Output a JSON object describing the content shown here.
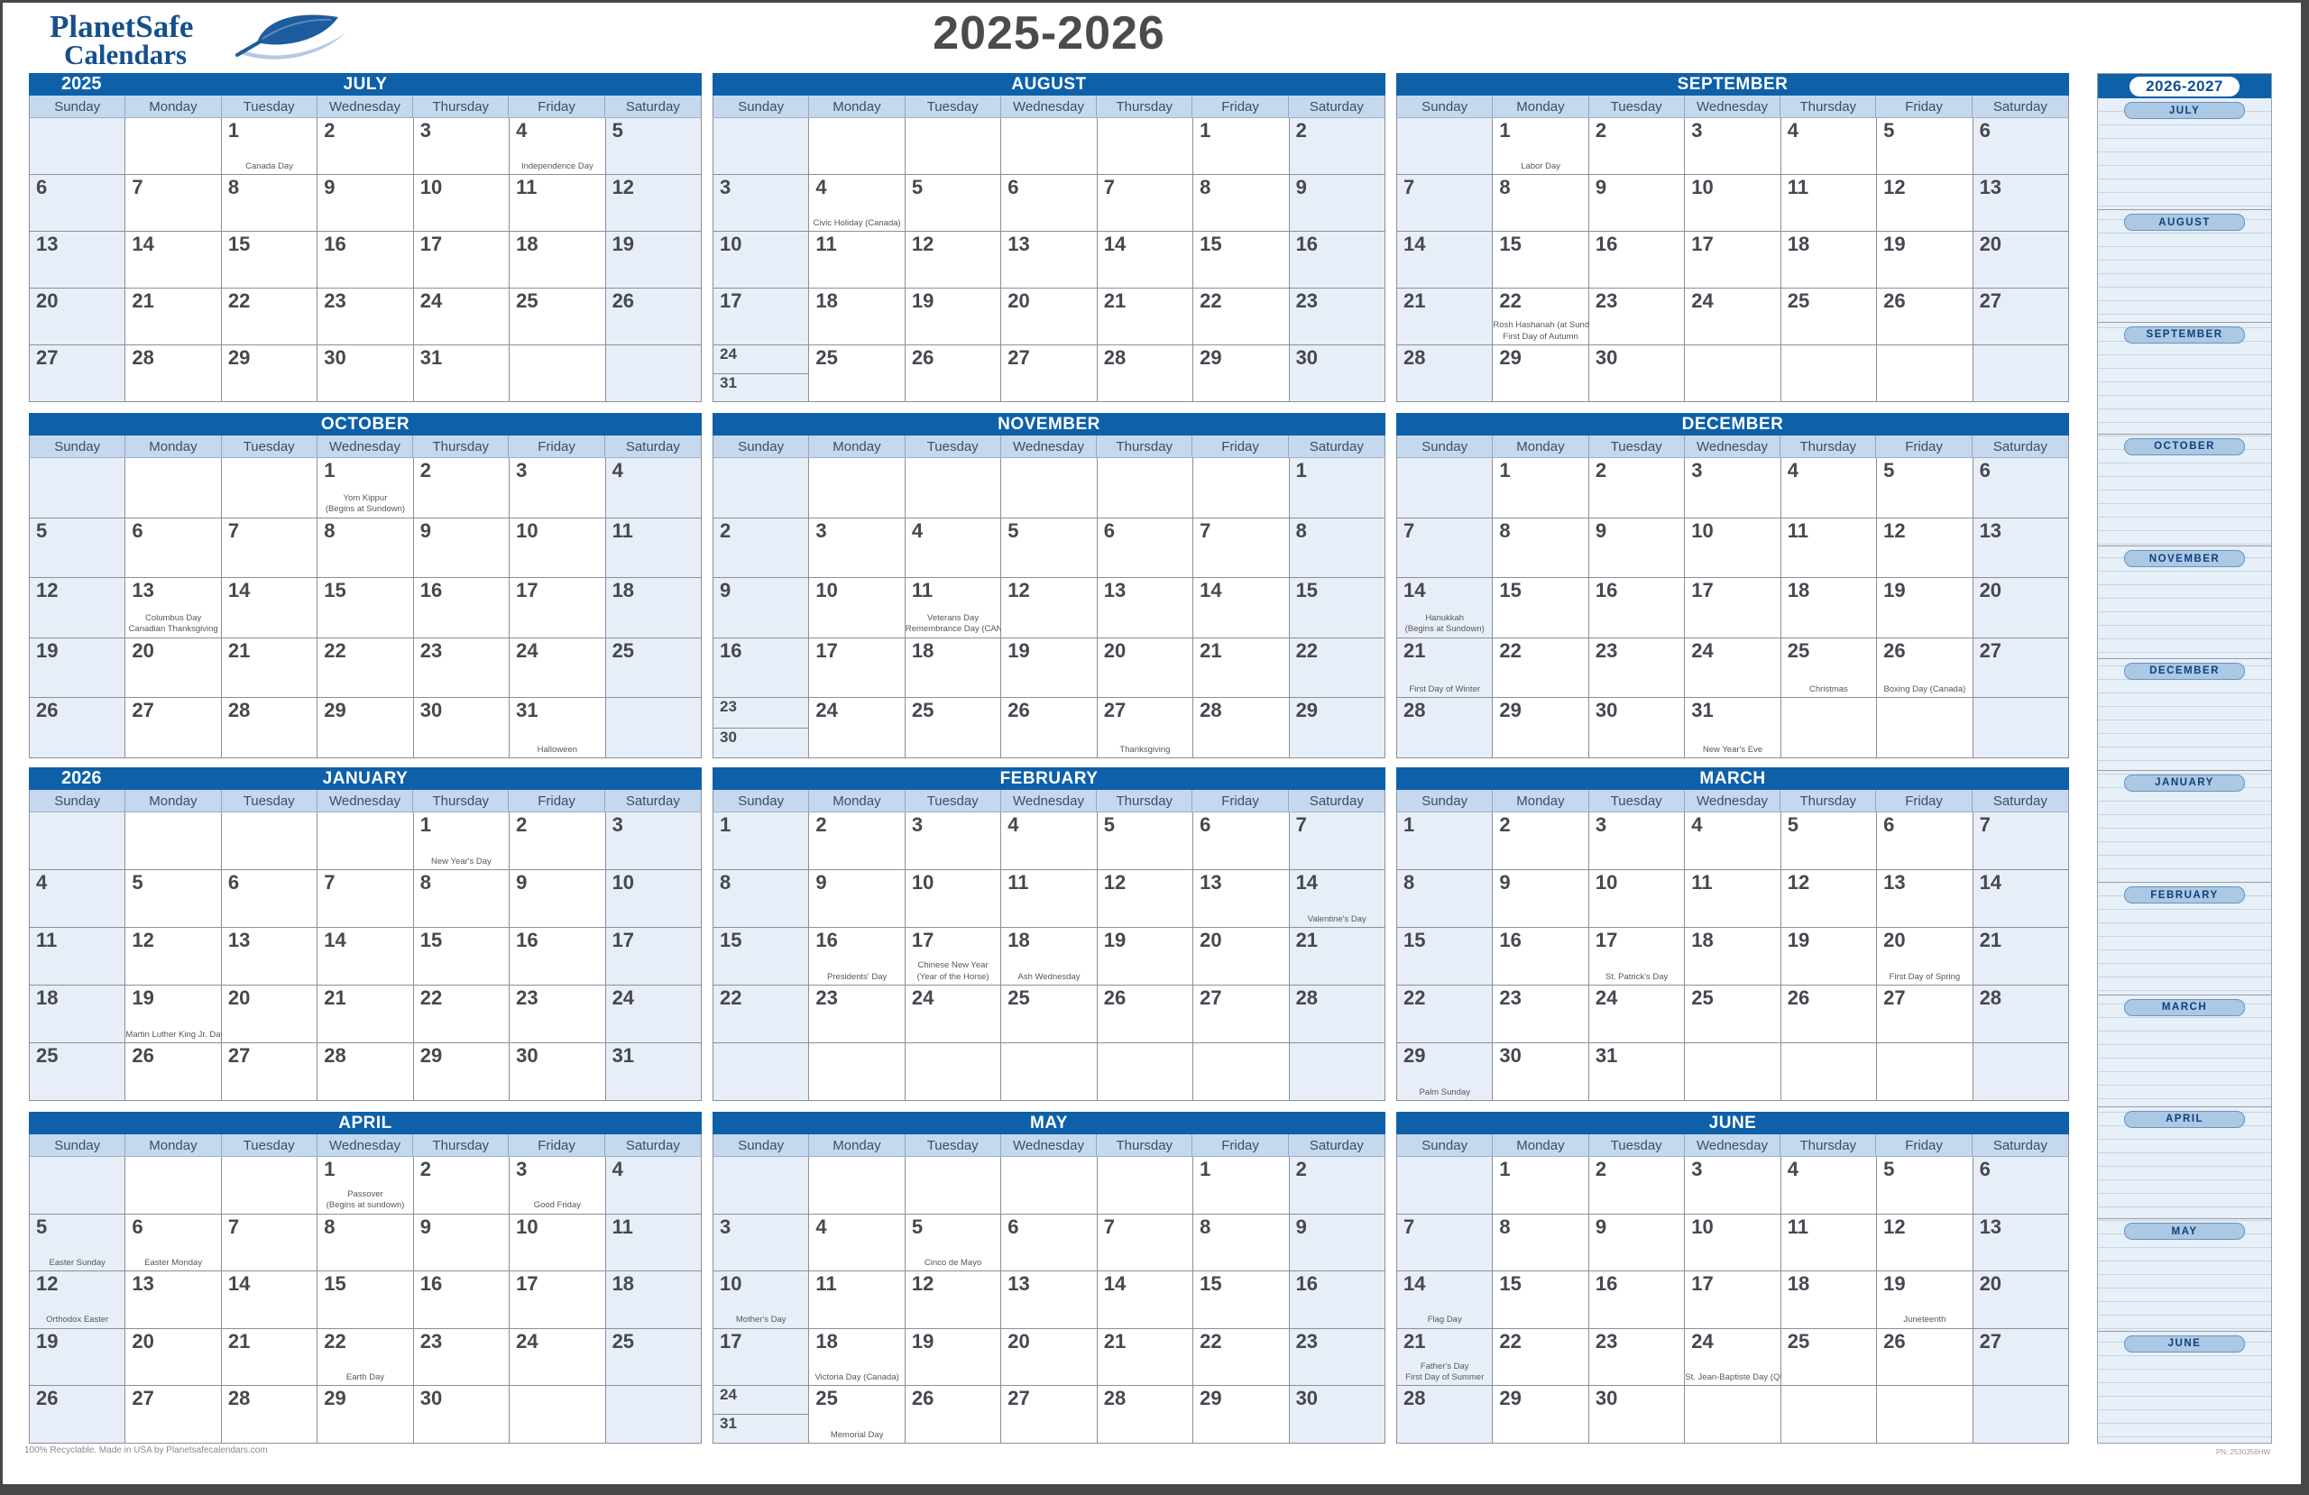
{
  "page": {
    "logo_line1": "PlanetSafe",
    "logo_line2": "Calendars",
    "title": "2025-2026",
    "footer_left": "100% Recyclable. Made in USA by Planetsafecalendars.com",
    "footer_right": "PN: 2530356HW"
  },
  "colors": {
    "header_blue": "#0e60a9",
    "day_row_blue": "#c5d8ee",
    "weekend_tint": "#e8eef7",
    "logo_blue": "#174f8c",
    "sidebar_bg": "#e7eff8",
    "pill_blue": "#abc8e5"
  },
  "day_headers": [
    "Sunday",
    "Monday",
    "Tuesday",
    "Wednesday",
    "Thursday",
    "Friday",
    "Saturday"
  ],
  "months": [
    {
      "name": "JULY",
      "year": "2025",
      "cells": [
        null,
        null,
        {
          "d": "1",
          "h": [
            "Canada Day"
          ]
        },
        {
          "d": "2"
        },
        {
          "d": "3"
        },
        {
          "d": "4",
          "h": [
            "Independence Day"
          ]
        },
        {
          "d": "5"
        },
        {
          "d": "6"
        },
        {
          "d": "7"
        },
        {
          "d": "8"
        },
        {
          "d": "9"
        },
        {
          "d": "10"
        },
        {
          "d": "11"
        },
        {
          "d": "12"
        },
        {
          "d": "13"
        },
        {
          "d": "14"
        },
        {
          "d": "15"
        },
        {
          "d": "16"
        },
        {
          "d": "17"
        },
        {
          "d": "18"
        },
        {
          "d": "19"
        },
        {
          "d": "20"
        },
        {
          "d": "21"
        },
        {
          "d": "22"
        },
        {
          "d": "23"
        },
        {
          "d": "24"
        },
        {
          "d": "25"
        },
        {
          "d": "26"
        },
        {
          "d": "27"
        },
        {
          "d": "28"
        },
        {
          "d": "29"
        },
        {
          "d": "30"
        },
        {
          "d": "31"
        },
        null,
        null
      ]
    },
    {
      "name": "AUGUST",
      "year": "",
      "cells": [
        null,
        null,
        null,
        null,
        null,
        {
          "d": "1"
        },
        {
          "d": "2"
        },
        {
          "d": "3"
        },
        {
          "d": "4",
          "h": [
            "Civic Holiday (Canada)"
          ]
        },
        {
          "d": "5"
        },
        {
          "d": "6"
        },
        {
          "d": "7"
        },
        {
          "d": "8"
        },
        {
          "d": "9"
        },
        {
          "d": "10"
        },
        {
          "d": "11"
        },
        {
          "d": "12"
        },
        {
          "d": "13"
        },
        {
          "d": "14"
        },
        {
          "d": "15"
        },
        {
          "d": "16"
        },
        {
          "d": "17"
        },
        {
          "d": "18"
        },
        {
          "d": "19"
        },
        {
          "d": "20"
        },
        {
          "d": "21"
        },
        {
          "d": "22"
        },
        {
          "d": "23"
        },
        {
          "d": "24",
          "d2": "31"
        },
        {
          "d": "25"
        },
        {
          "d": "26"
        },
        {
          "d": "27"
        },
        {
          "d": "28"
        },
        {
          "d": "29"
        },
        {
          "d": "30"
        }
      ]
    },
    {
      "name": "SEPTEMBER",
      "year": "",
      "cells": [
        null,
        {
          "d": "1",
          "h": [
            "Labor Day"
          ]
        },
        {
          "d": "2"
        },
        {
          "d": "3"
        },
        {
          "d": "4"
        },
        {
          "d": "5"
        },
        {
          "d": "6"
        },
        {
          "d": "7"
        },
        {
          "d": "8"
        },
        {
          "d": "9"
        },
        {
          "d": "10"
        },
        {
          "d": "11"
        },
        {
          "d": "12"
        },
        {
          "d": "13"
        },
        {
          "d": "14"
        },
        {
          "d": "15"
        },
        {
          "d": "16"
        },
        {
          "d": "17"
        },
        {
          "d": "18"
        },
        {
          "d": "19"
        },
        {
          "d": "20"
        },
        {
          "d": "21"
        },
        {
          "d": "22",
          "h": [
            "Rosh Hashanah (at Sundown)",
            "First Day of Autumn"
          ]
        },
        {
          "d": "23"
        },
        {
          "d": "24"
        },
        {
          "d": "25"
        },
        {
          "d": "26"
        },
        {
          "d": "27"
        },
        {
          "d": "28"
        },
        {
          "d": "29"
        },
        {
          "d": "30"
        },
        null,
        null,
        null,
        null
      ]
    },
    {
      "name": "OCTOBER",
      "year": "",
      "cells": [
        null,
        null,
        null,
        {
          "d": "1",
          "h": [
            "Yom Kippur",
            "(Begins at Sundown)"
          ]
        },
        {
          "d": "2"
        },
        {
          "d": "3"
        },
        {
          "d": "4"
        },
        {
          "d": "5"
        },
        {
          "d": "6"
        },
        {
          "d": "7"
        },
        {
          "d": "8"
        },
        {
          "d": "9"
        },
        {
          "d": "10"
        },
        {
          "d": "11"
        },
        {
          "d": "12"
        },
        {
          "d": "13",
          "h": [
            "Columbus Day",
            "Canadian Thanksgiving"
          ]
        },
        {
          "d": "14"
        },
        {
          "d": "15"
        },
        {
          "d": "16"
        },
        {
          "d": "17"
        },
        {
          "d": "18"
        },
        {
          "d": "19"
        },
        {
          "d": "20"
        },
        {
          "d": "21"
        },
        {
          "d": "22"
        },
        {
          "d": "23"
        },
        {
          "d": "24"
        },
        {
          "d": "25"
        },
        {
          "d": "26"
        },
        {
          "d": "27"
        },
        {
          "d": "28"
        },
        {
          "d": "29"
        },
        {
          "d": "30"
        },
        {
          "d": "31",
          "h": [
            "Halloween"
          ]
        },
        null
      ]
    },
    {
      "name": "NOVEMBER",
      "year": "",
      "cells": [
        null,
        null,
        null,
        null,
        null,
        null,
        {
          "d": "1"
        },
        {
          "d": "2"
        },
        {
          "d": "3"
        },
        {
          "d": "4"
        },
        {
          "d": "5"
        },
        {
          "d": "6"
        },
        {
          "d": "7"
        },
        {
          "d": "8"
        },
        {
          "d": "9"
        },
        {
          "d": "10"
        },
        {
          "d": "11",
          "h": [
            "Veterans Day",
            "Remembrance Day (CAN)"
          ]
        },
        {
          "d": "12"
        },
        {
          "d": "13"
        },
        {
          "d": "14"
        },
        {
          "d": "15"
        },
        {
          "d": "16"
        },
        {
          "d": "17"
        },
        {
          "d": "18"
        },
        {
          "d": "19"
        },
        {
          "d": "20"
        },
        {
          "d": "21"
        },
        {
          "d": "22"
        },
        {
          "d": "23",
          "d2": "30"
        },
        {
          "d": "24"
        },
        {
          "d": "25"
        },
        {
          "d": "26"
        },
        {
          "d": "27",
          "h": [
            "Thanksgiving"
          ]
        },
        {
          "d": "28"
        },
        {
          "d": "29"
        }
      ]
    },
    {
      "name": "DECEMBER",
      "year": "",
      "cells": [
        null,
        {
          "d": "1"
        },
        {
          "d": "2"
        },
        {
          "d": "3"
        },
        {
          "d": "4"
        },
        {
          "d": "5"
        },
        {
          "d": "6"
        },
        {
          "d": "7"
        },
        {
          "d": "8"
        },
        {
          "d": "9"
        },
        {
          "d": "10"
        },
        {
          "d": "11"
        },
        {
          "d": "12"
        },
        {
          "d": "13"
        },
        {
          "d": "14",
          "h": [
            "Hanukkah",
            "(Begins at Sundown)"
          ]
        },
        {
          "d": "15"
        },
        {
          "d": "16"
        },
        {
          "d": "17"
        },
        {
          "d": "18"
        },
        {
          "d": "19"
        },
        {
          "d": "20"
        },
        {
          "d": "21",
          "h": [
            "First Day of Winter"
          ]
        },
        {
          "d": "22"
        },
        {
          "d": "23"
        },
        {
          "d": "24"
        },
        {
          "d": "25",
          "h": [
            "Christmas"
          ]
        },
        {
          "d": "26",
          "h": [
            "Boxing Day (Canada)"
          ]
        },
        {
          "d": "27"
        },
        {
          "d": "28"
        },
        {
          "d": "29"
        },
        {
          "d": "30"
        },
        {
          "d": "31",
          "h": [
            "New Year's Eve"
          ]
        },
        null,
        null,
        null
      ]
    },
    {
      "name": "JANUARY",
      "year": "2026",
      "cells": [
        null,
        null,
        null,
        null,
        {
          "d": "1",
          "h": [
            "New Year's Day"
          ]
        },
        {
          "d": "2"
        },
        {
          "d": "3"
        },
        {
          "d": "4"
        },
        {
          "d": "5"
        },
        {
          "d": "6"
        },
        {
          "d": "7"
        },
        {
          "d": "8"
        },
        {
          "d": "9"
        },
        {
          "d": "10"
        },
        {
          "d": "11"
        },
        {
          "d": "12"
        },
        {
          "d": "13"
        },
        {
          "d": "14"
        },
        {
          "d": "15"
        },
        {
          "d": "16"
        },
        {
          "d": "17"
        },
        {
          "d": "18"
        },
        {
          "d": "19",
          "h": [
            "Martin Luther King Jr. Day"
          ]
        },
        {
          "d": "20"
        },
        {
          "d": "21"
        },
        {
          "d": "22"
        },
        {
          "d": "23"
        },
        {
          "d": "24"
        },
        {
          "d": "25"
        },
        {
          "d": "26"
        },
        {
          "d": "27"
        },
        {
          "d": "28"
        },
        {
          "d": "29"
        },
        {
          "d": "30"
        },
        {
          "d": "31"
        }
      ]
    },
    {
      "name": "FEBRUARY",
      "year": "",
      "cells": [
        {
          "d": "1"
        },
        {
          "d": "2"
        },
        {
          "d": "3"
        },
        {
          "d": "4"
        },
        {
          "d": "5"
        },
        {
          "d": "6"
        },
        {
          "d": "7"
        },
        {
          "d": "8"
        },
        {
          "d": "9"
        },
        {
          "d": "10"
        },
        {
          "d": "11"
        },
        {
          "d": "12"
        },
        {
          "d": "13"
        },
        {
          "d": "14",
          "h": [
            "Valentine's Day"
          ]
        },
        {
          "d": "15"
        },
        {
          "d": "16",
          "h": [
            "Presidents' Day"
          ]
        },
        {
          "d": "17",
          "h": [
            "Chinese New Year",
            "(Year of the Horse)"
          ]
        },
        {
          "d": "18",
          "h": [
            "Ash Wednesday"
          ]
        },
        {
          "d": "19"
        },
        {
          "d": "20"
        },
        {
          "d": "21"
        },
        {
          "d": "22"
        },
        {
          "d": "23"
        },
        {
          "d": "24"
        },
        {
          "d": "25"
        },
        {
          "d": "26"
        },
        {
          "d": "27"
        },
        {
          "d": "28"
        },
        null,
        null,
        null,
        null,
        null,
        null,
        null
      ]
    },
    {
      "name": "MARCH",
      "year": "",
      "cells": [
        {
          "d": "1"
        },
        {
          "d": "2"
        },
        {
          "d": "3"
        },
        {
          "d": "4"
        },
        {
          "d": "5"
        },
        {
          "d": "6"
        },
        {
          "d": "7"
        },
        {
          "d": "8"
        },
        {
          "d": "9"
        },
        {
          "d": "10"
        },
        {
          "d": "11"
        },
        {
          "d": "12"
        },
        {
          "d": "13"
        },
        {
          "d": "14"
        },
        {
          "d": "15"
        },
        {
          "d": "16"
        },
        {
          "d": "17",
          "h": [
            "St. Patrick's Day"
          ]
        },
        {
          "d": "18"
        },
        {
          "d": "19"
        },
        {
          "d": "20",
          "h": [
            "First Day of Spring"
          ]
        },
        {
          "d": "21"
        },
        {
          "d": "22"
        },
        {
          "d": "23"
        },
        {
          "d": "24"
        },
        {
          "d": "25"
        },
        {
          "d": "26"
        },
        {
          "d": "27"
        },
        {
          "d": "28"
        },
        {
          "d": "29",
          "h": [
            "Palm Sunday"
          ]
        },
        {
          "d": "30"
        },
        {
          "d": "31"
        },
        null,
        null,
        null,
        null
      ]
    },
    {
      "name": "APRIL",
      "year": "",
      "cells": [
        null,
        null,
        null,
        {
          "d": "1",
          "h": [
            "Passover",
            "(Begins at sundown)"
          ]
        },
        {
          "d": "2"
        },
        {
          "d": "3",
          "h": [
            "Good Friday"
          ]
        },
        {
          "d": "4"
        },
        {
          "d": "5",
          "h": [
            "Easter Sunday"
          ]
        },
        {
          "d": "6",
          "h": [
            "Easter Monday"
          ]
        },
        {
          "d": "7"
        },
        {
          "d": "8"
        },
        {
          "d": "9"
        },
        {
          "d": "10"
        },
        {
          "d": "11"
        },
        {
          "d": "12",
          "h": [
            "Orthodox Easter"
          ]
        },
        {
          "d": "13"
        },
        {
          "d": "14"
        },
        {
          "d": "15"
        },
        {
          "d": "16"
        },
        {
          "d": "17"
        },
        {
          "d": "18"
        },
        {
          "d": "19"
        },
        {
          "d": "20"
        },
        {
          "d": "21"
        },
        {
          "d": "22",
          "h": [
            "Earth Day"
          ]
        },
        {
          "d": "23"
        },
        {
          "d": "24"
        },
        {
          "d": "25"
        },
        {
          "d": "26"
        },
        {
          "d": "27"
        },
        {
          "d": "28"
        },
        {
          "d": "29"
        },
        {
          "d": "30"
        },
        null,
        null
      ]
    },
    {
      "name": "MAY",
      "year": "",
      "cells": [
        null,
        null,
        null,
        null,
        null,
        {
          "d": "1"
        },
        {
          "d": "2"
        },
        {
          "d": "3"
        },
        {
          "d": "4"
        },
        {
          "d": "5",
          "h": [
            "Cinco de Mayo"
          ]
        },
        {
          "d": "6"
        },
        {
          "d": "7"
        },
        {
          "d": "8"
        },
        {
          "d": "9"
        },
        {
          "d": "10",
          "h": [
            "Mother's Day"
          ]
        },
        {
          "d": "11"
        },
        {
          "d": "12"
        },
        {
          "d": "13"
        },
        {
          "d": "14"
        },
        {
          "d": "15"
        },
        {
          "d": "16"
        },
        {
          "d": "17"
        },
        {
          "d": "18",
          "h": [
            "Victoria Day (Canada)"
          ]
        },
        {
          "d": "19"
        },
        {
          "d": "20"
        },
        {
          "d": "21"
        },
        {
          "d": "22"
        },
        {
          "d": "23"
        },
        {
          "d": "24",
          "d2": "31"
        },
        {
          "d": "25",
          "h": [
            "Memorial Day"
          ]
        },
        {
          "d": "26"
        },
        {
          "d": "27"
        },
        {
          "d": "28"
        },
        {
          "d": "29"
        },
        {
          "d": "30"
        }
      ]
    },
    {
      "name": "JUNE",
      "year": "",
      "cells": [
        null,
        {
          "d": "1"
        },
        {
          "d": "2"
        },
        {
          "d": "3"
        },
        {
          "d": "4"
        },
        {
          "d": "5"
        },
        {
          "d": "6"
        },
        {
          "d": "7"
        },
        {
          "d": "8"
        },
        {
          "d": "9"
        },
        {
          "d": "10"
        },
        {
          "d": "11"
        },
        {
          "d": "12"
        },
        {
          "d": "13"
        },
        {
          "d": "14",
          "h": [
            "Flag Day"
          ]
        },
        {
          "d": "15"
        },
        {
          "d": "16"
        },
        {
          "d": "17"
        },
        {
          "d": "18"
        },
        {
          "d": "19",
          "h": [
            "Juneteenth"
          ]
        },
        {
          "d": "20"
        },
        {
          "d": "21",
          "h": [
            "Father's Day",
            "First Day of Summer"
          ]
        },
        {
          "d": "22"
        },
        {
          "d": "23"
        },
        {
          "d": "24",
          "h": [
            "St. Jean-Baptiste Day (QUE)"
          ]
        },
        {
          "d": "25"
        },
        {
          "d": "26"
        },
        {
          "d": "27"
        },
        {
          "d": "28"
        },
        {
          "d": "29"
        },
        {
          "d": "30"
        },
        null,
        null,
        null,
        null
      ]
    }
  ],
  "sidebar": {
    "title": "2026-2027",
    "months": [
      "JULY",
      "AUGUST",
      "SEPTEMBER",
      "OCTOBER",
      "NOVEMBER",
      "DECEMBER",
      "JANUARY",
      "FEBRUARY",
      "MARCH",
      "APRIL",
      "MAY",
      "JUNE"
    ]
  }
}
